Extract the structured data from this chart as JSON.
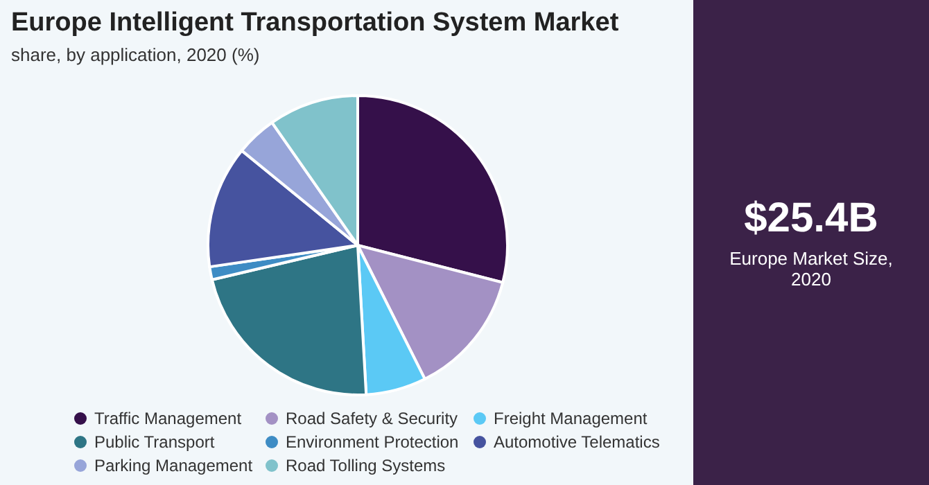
{
  "chart_data": {
    "type": "pie",
    "title": "Europe Intelligent Transportation System Market",
    "subtitle": "share, by application, 2020 (%)",
    "categories": [
      "Traffic Management",
      "Road Safety & Security",
      "Freight Management",
      "Public Transport",
      "Environment Protection",
      "Automotive Telematics",
      "Parking Management",
      "Road Tolling Systems"
    ],
    "values": [
      29.0,
      13.6,
      6.5,
      22.2,
      1.4,
      13.2,
      4.4,
      9.7
    ],
    "colors": [
      "#35104a",
      "#a391c4",
      "#5bc9f5",
      "#2e7585",
      "#3e8cc4",
      "#46539f",
      "#97a5d9",
      "#80c2cb"
    ],
    "legend": "bottom",
    "annotations": [
      "$25.4B",
      "Europe Market Size, 2020"
    ]
  }
}
